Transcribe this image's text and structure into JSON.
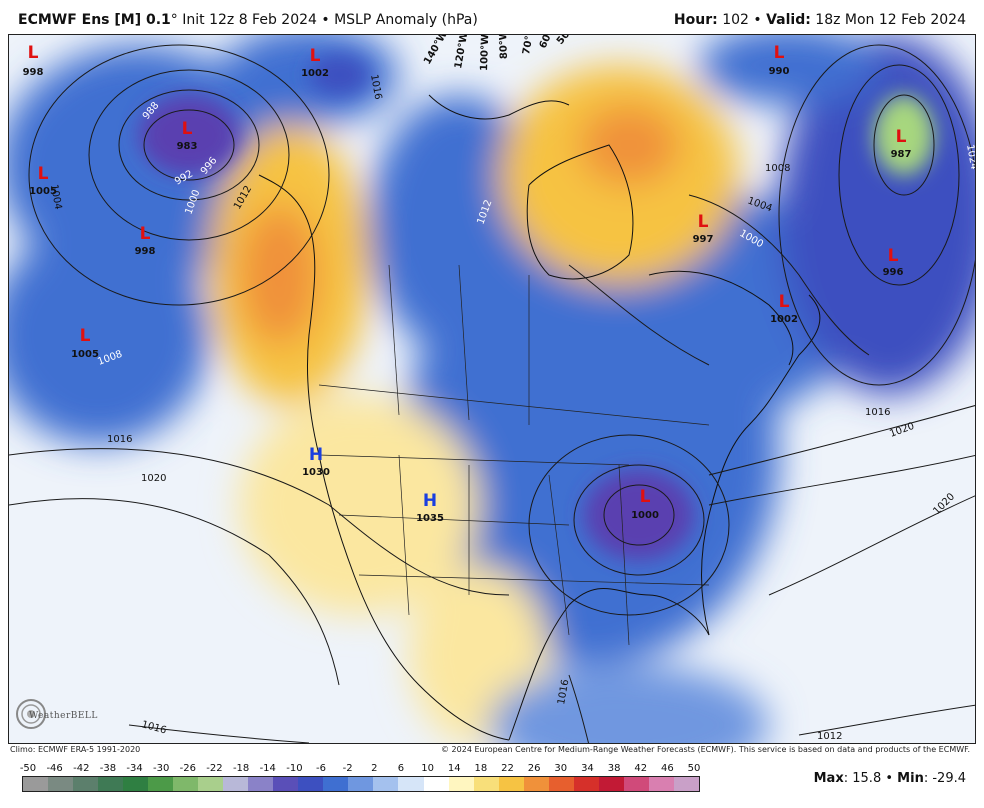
{
  "header": {
    "model": "ECMWF Ens [M] 0.1",
    "degree": "°",
    "init": "Init 12z 8 Feb 2024",
    "sep": "•",
    "field": "MSLP Anomaly (hPa)",
    "hour_label": "Hour:",
    "hour_value": "102",
    "valid_label": "Valid:",
    "valid_value": "18z Mon 12 Feb 2024"
  },
  "map": {
    "lon_labels": [
      "140°W",
      "120°W",
      "100°W",
      "80°W",
      "70°W",
      "60°W",
      "50°W"
    ],
    "pressure_centers": [
      {
        "type": "L",
        "value": "998"
      },
      {
        "type": "L",
        "value": "1002"
      },
      {
        "type": "L",
        "value": "983"
      },
      {
        "type": "L",
        "value": "1005"
      },
      {
        "type": "L",
        "value": "998"
      },
      {
        "type": "L",
        "value": "1005"
      },
      {
        "type": "L",
        "value": "990"
      },
      {
        "type": "L",
        "value": "987"
      },
      {
        "type": "L",
        "value": "997"
      },
      {
        "type": "L",
        "value": "996"
      },
      {
        "type": "L",
        "value": "1002"
      },
      {
        "type": "L",
        "value": "1000"
      },
      {
        "type": "H",
        "value": "1030"
      },
      {
        "type": "H",
        "value": "1035"
      }
    ],
    "isobar_labels": [
      "1012",
      "1016",
      "1020",
      "1008",
      "1004",
      "1000",
      "996",
      "992",
      "988",
      "1016",
      "1012",
      "1016",
      "1020",
      "1024",
      "1008",
      "1004",
      "1000",
      "1016",
      "1016",
      "1012",
      "1020"
    ],
    "colors": {
      "low_anomaly": "#3f6fd1",
      "strong_low": "#5a3fb0",
      "high_anomaly": "#f6c343",
      "strong_high": "#f0913a",
      "low_marker": "#e01010",
      "high_marker": "#1a3fe0"
    }
  },
  "logo": {
    "text": "WeatherBELL"
  },
  "footer": {
    "climo": "Climo: ECMWF ERA-5 1991-2020",
    "copyright": "© 2024 European Centre for Medium-Range Weather Forecasts (ECMWF). This service is based on data and products of the ECMWF."
  },
  "colorbar": {
    "labels": [
      "-50",
      "-46",
      "-42",
      "-38",
      "-34",
      "-30",
      "-26",
      "-22",
      "-18",
      "-14",
      "-10",
      "-6",
      "-2",
      "2",
      "6",
      "10",
      "14",
      "18",
      "22",
      "26",
      "30",
      "34",
      "38",
      "42",
      "46",
      "50"
    ],
    "colors": [
      "#9a9a9a",
      "#7a8a82",
      "#5c7f6c",
      "#3f7a55",
      "#2f7f42",
      "#4c9a48",
      "#7fb86a",
      "#a9cf8c",
      "#b8b8d8",
      "#8a82c8",
      "#5a4fb8",
      "#3d50c0",
      "#3f6fd1",
      "#6f97e0",
      "#a4c1ee",
      "#d6e5f8",
      "#ffffff",
      "#fff6c0",
      "#f8df7a",
      "#f6c343",
      "#f0913a",
      "#e75f2e",
      "#d6302a",
      "#c21a35",
      "#d04a7a",
      "#d97fb0",
      "#c9a0c8"
    ],
    "max_label": "Max",
    "max_value": "15.8",
    "min_label": "Min",
    "min_value": "-29.4"
  }
}
